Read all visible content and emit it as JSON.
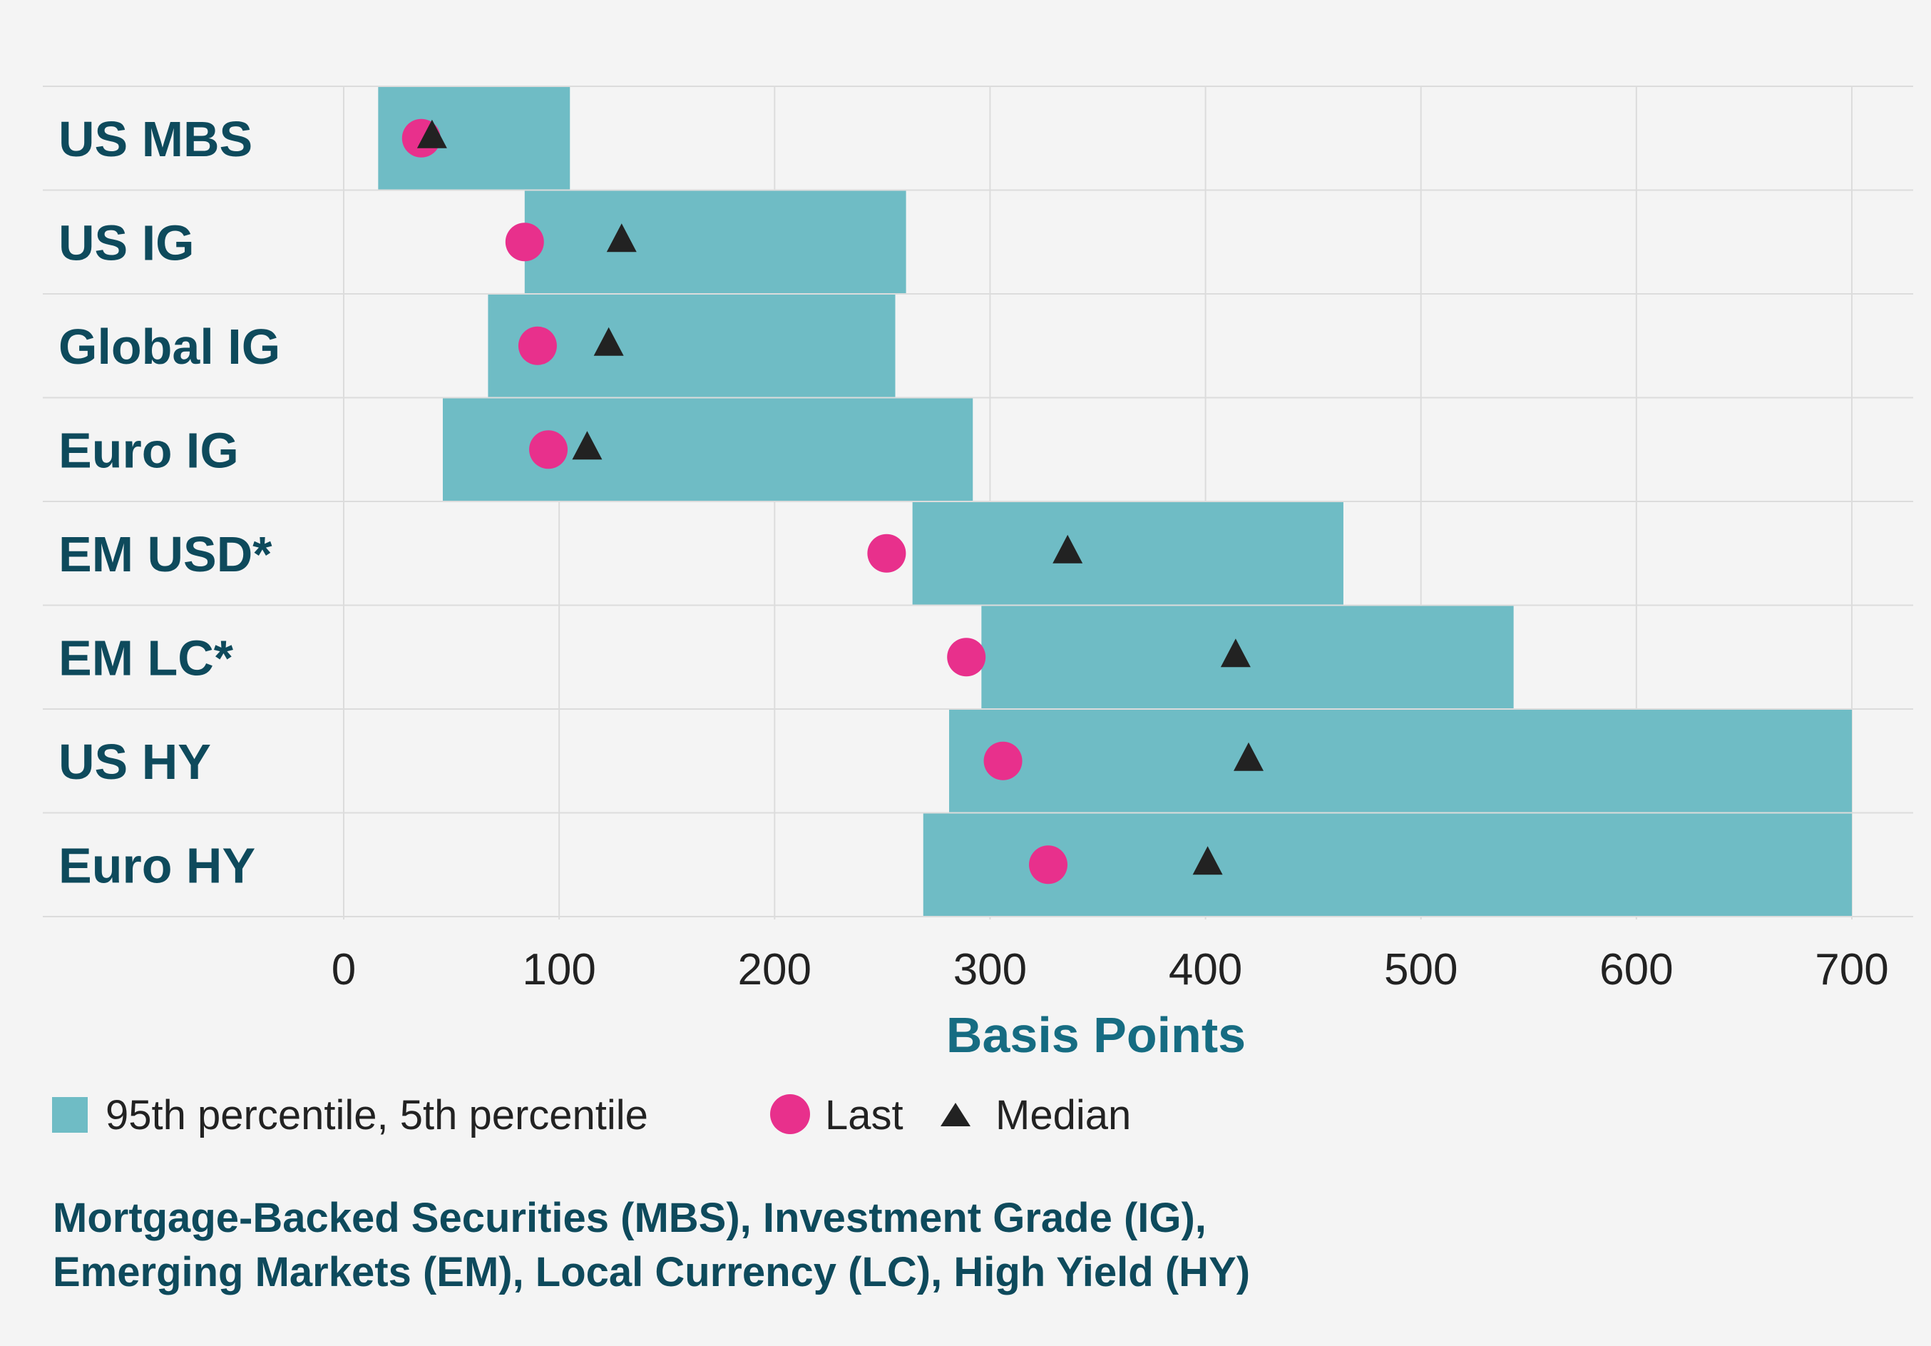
{
  "chart_data": {
    "type": "range",
    "xlabel": "Basis Points",
    "xlim": [
      0,
      700
    ],
    "xticks": [
      0,
      100,
      200,
      300,
      400,
      500,
      600,
      700
    ],
    "categories": [
      "US MBS",
      "US IG",
      "Global IG",
      "Euro IG",
      "EM USD*",
      "EM LC*",
      "US HY",
      "Euro HY"
    ],
    "series": [
      {
        "name": "95th percentile, 5th percentile",
        "kind": "range",
        "low": [
          16,
          84,
          67,
          46,
          264,
          296,
          281,
          269
        ],
        "high": [
          105,
          261,
          256,
          292,
          464,
          543,
          700,
          700
        ]
      },
      {
        "name": "Last",
        "kind": "point",
        "values": [
          36,
          84,
          90,
          95,
          252,
          289,
          306,
          327
        ]
      },
      {
        "name": "Median",
        "kind": "point",
        "values": [
          41,
          129,
          123,
          113,
          336,
          414,
          420,
          401
        ]
      }
    ],
    "colors": {
      "range": "#6fbcc5",
      "last": "#e8308c",
      "median": "#222222"
    }
  },
  "legend": {
    "range_label": "95th percentile, 5th percentile",
    "last_label": "Last",
    "median_label": "Median"
  },
  "footnote": {
    "line1": "Mortgage-Backed Securities (MBS), Investment Grade (IG),",
    "line2": "Emerging Markets (EM), Local Currency (LC), High Yield (HY)"
  }
}
